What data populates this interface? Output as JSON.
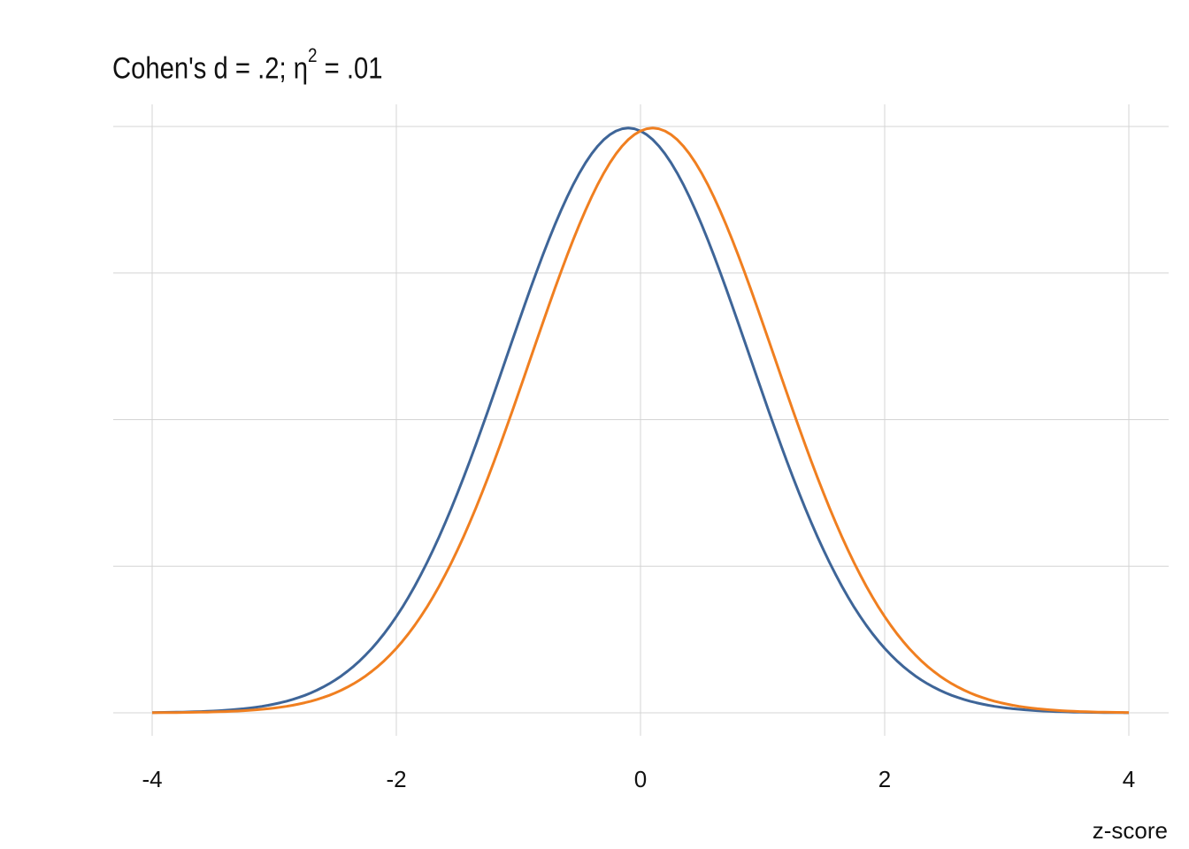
{
  "chart_data": {
    "type": "line",
    "title_parts": {
      "prefix": "Cohen's d = .2; ",
      "eta": "η",
      "sup": "2",
      "suffix": " = .01"
    },
    "xlabel": "z-score",
    "ylabel": "",
    "xlim": [
      -4,
      4
    ],
    "ylim": [
      0,
      0.4
    ],
    "xticks": [
      "-4",
      "-2",
      "0",
      "2",
      "4"
    ],
    "yticks_gridlines": [
      0,
      0.1,
      0.2,
      0.3,
      0.4
    ],
    "grid": true,
    "legend": "none",
    "x": [
      -4,
      -3.5,
      -3,
      -2.5,
      -2,
      -1.5,
      -1,
      -0.5,
      0,
      0.5,
      1,
      1.5,
      2,
      2.5,
      3,
      3.5,
      4
    ],
    "series": [
      {
        "color": "#3e6598",
        "mean": -0.1,
        "sd": 1,
        "values": [
          0.0002,
          0.0012,
          0.006,
          0.0224,
          0.0656,
          0.1497,
          0.2661,
          0.3683,
          0.397,
          0.3332,
          0.2179,
          0.1109,
          0.044,
          0.0136,
          0.0033,
          0.0006,
          0.0001
        ]
      },
      {
        "color": "#f07f20",
        "mean": 0.1,
        "sd": 1,
        "values": [
          0.0001,
          0.0006,
          0.0033,
          0.0136,
          0.044,
          0.1109,
          0.2179,
          0.3332,
          0.397,
          0.3683,
          0.2661,
          0.1497,
          0.0656,
          0.0224,
          0.006,
          0.0012,
          0.0002
        ]
      }
    ]
  }
}
